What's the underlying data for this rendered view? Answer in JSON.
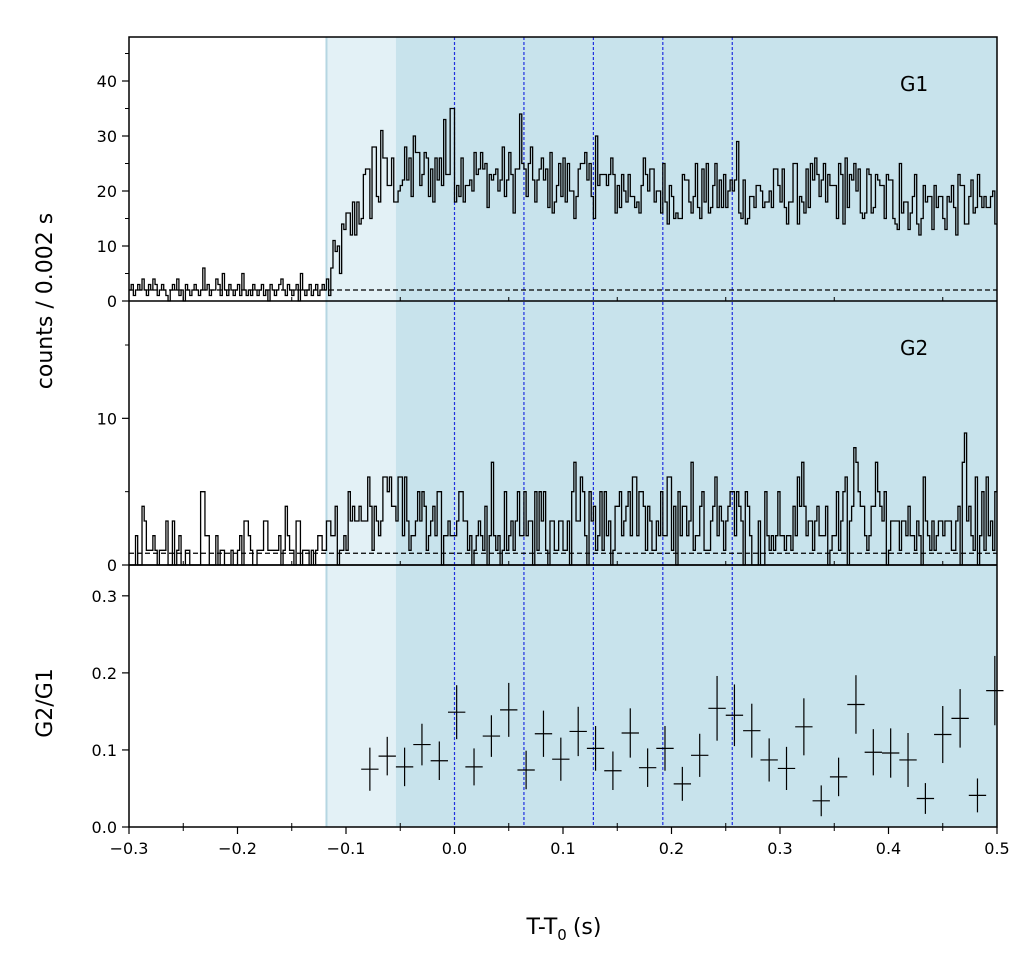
{
  "chart_data": [
    {
      "panel": "G1",
      "type": "histogram-step",
      "label": "G1",
      "ylabel": "counts / 0.002 s",
      "xlim": [
        -0.3,
        0.5
      ],
      "ylim": [
        0,
        48
      ],
      "yticks": [
        0,
        10,
        20,
        30,
        40
      ],
      "bin_width": 0.002,
      "background_level": 2,
      "rise_start": -0.118,
      "rise_end": -0.06,
      "pre_counts": [
        2,
        3,
        1,
        2,
        3,
        2,
        4,
        2,
        1,
        3,
        2,
        4,
        3,
        1,
        2,
        3,
        2,
        1,
        0,
        2,
        3,
        2,
        4,
        1,
        2,
        0,
        3,
        2,
        1,
        2,
        3,
        2,
        1,
        2,
        6,
        2,
        3,
        1,
        2,
        2,
        4,
        3,
        1,
        5,
        2,
        1,
        3,
        2,
        1,
        2,
        3,
        1,
        5,
        2,
        1,
        2,
        1,
        3,
        2,
        1,
        2,
        3,
        1,
        2,
        0,
        3,
        2,
        1,
        2,
        3,
        4,
        2,
        1,
        3,
        2,
        1,
        2,
        3,
        0,
        5,
        2,
        1,
        2,
        3,
        1
      ],
      "post_level": [
        [
          -0.118,
          2
        ],
        [
          -0.1,
          12
        ],
        [
          -0.085,
          19
        ],
        [
          -0.06,
          22
        ],
        [
          0.0,
          24
        ],
        [
          0.05,
          22
        ],
        [
          0.12,
          21
        ],
        [
          0.2,
          20
        ],
        [
          0.28,
          19
        ],
        [
          0.35,
          20
        ],
        [
          0.42,
          18
        ],
        [
          0.5,
          17
        ]
      ],
      "post_noise_amplitude": 6,
      "peaks": [
        [
          -0.075,
          28
        ],
        [
          -0.068,
          31
        ],
        [
          -0.038,
          30
        ],
        [
          -0.01,
          33
        ],
        [
          -0.003,
          35
        ],
        [
          0.06,
          34
        ],
        [
          0.13,
          30
        ],
        [
          0.26,
          29
        ],
        [
          0.36,
          26
        ],
        [
          0.41,
          25
        ]
      ]
    },
    {
      "panel": "G2",
      "type": "histogram-step",
      "label": "G2",
      "xlim": [
        -0.3,
        0.5
      ],
      "ylim": [
        0,
        18
      ],
      "yticks": [
        0,
        10
      ],
      "bin_width": 0.002,
      "background_level": 0.8,
      "pre_level": 0.9,
      "post_level": 2.8,
      "rise_start": -0.118,
      "peaks": [
        [
          -0.26,
          3
        ],
        [
          -0.233,
          5
        ],
        [
          -0.193,
          3
        ],
        [
          -0.175,
          3
        ],
        [
          -0.145,
          3
        ],
        [
          -0.117,
          3
        ],
        [
          -0.05,
          6
        ],
        [
          -0.065,
          6
        ],
        [
          -0.015,
          5
        ],
        [
          0.005,
          5
        ],
        [
          0.165,
          6
        ],
        [
          0.24,
          6
        ],
        [
          0.255,
          5
        ],
        [
          0.37,
          7
        ],
        [
          0.47,
          9
        ],
        [
          0.49,
          6
        ]
      ]
    },
    {
      "panel": "ratio",
      "type": "scatter-errorbar",
      "ylabel": "G2/G1",
      "xlabel": "T-T",
      "xlabel_sub": "0",
      "xlabel_unit": "(s)",
      "xlim": [
        -0.3,
        0.5
      ],
      "ylim": [
        0,
        0.34
      ],
      "yticks": [
        0.0,
        0.1,
        0.2,
        0.3
      ],
      "xticks": [
        -0.3,
        -0.2,
        -0.1,
        0.0,
        0.1,
        0.2,
        0.3,
        0.4,
        0.5
      ],
      "bin_halfwidth": 0.008,
      "points": [
        {
          "x": -0.078,
          "y": 0.075,
          "err": 0.028
        },
        {
          "x": -0.062,
          "y": 0.092,
          "err": 0.025
        },
        {
          "x": -0.046,
          "y": 0.078,
          "err": 0.025
        },
        {
          "x": -0.03,
          "y": 0.107,
          "err": 0.027
        },
        {
          "x": -0.014,
          "y": 0.086,
          "err": 0.025
        },
        {
          "x": 0.002,
          "y": 0.149,
          "err": 0.035
        },
        {
          "x": 0.018,
          "y": 0.078,
          "err": 0.024
        },
        {
          "x": 0.034,
          "y": 0.118,
          "err": 0.027
        },
        {
          "x": 0.05,
          "y": 0.152,
          "err": 0.035
        },
        {
          "x": 0.066,
          "y": 0.074,
          "err": 0.025
        },
        {
          "x": 0.082,
          "y": 0.121,
          "err": 0.03
        },
        {
          "x": 0.098,
          "y": 0.088,
          "err": 0.028
        },
        {
          "x": 0.114,
          "y": 0.124,
          "err": 0.032
        },
        {
          "x": 0.13,
          "y": 0.102,
          "err": 0.029
        },
        {
          "x": 0.146,
          "y": 0.073,
          "err": 0.025
        },
        {
          "x": 0.162,
          "y": 0.122,
          "err": 0.032
        },
        {
          "x": 0.178,
          "y": 0.077,
          "err": 0.025
        },
        {
          "x": 0.194,
          "y": 0.102,
          "err": 0.029
        },
        {
          "x": 0.21,
          "y": 0.056,
          "err": 0.022
        },
        {
          "x": 0.226,
          "y": 0.093,
          "err": 0.028
        },
        {
          "x": 0.242,
          "y": 0.154,
          "err": 0.042
        },
        {
          "x": 0.258,
          "y": 0.145,
          "err": 0.04
        },
        {
          "x": 0.274,
          "y": 0.125,
          "err": 0.035
        },
        {
          "x": 0.29,
          "y": 0.087,
          "err": 0.028
        },
        {
          "x": 0.306,
          "y": 0.076,
          "err": 0.028
        },
        {
          "x": 0.322,
          "y": 0.13,
          "err": 0.037
        },
        {
          "x": 0.338,
          "y": 0.034,
          "err": 0.02
        },
        {
          "x": 0.354,
          "y": 0.065,
          "err": 0.025
        },
        {
          "x": 0.37,
          "y": 0.159,
          "err": 0.038
        },
        {
          "x": 0.386,
          "y": 0.097,
          "err": 0.03
        },
        {
          "x": 0.402,
          "y": 0.096,
          "err": 0.032
        },
        {
          "x": 0.418,
          "y": 0.087,
          "err": 0.035
        },
        {
          "x": 0.434,
          "y": 0.037,
          "err": 0.02
        },
        {
          "x": 0.45,
          "y": 0.12,
          "err": 0.037
        },
        {
          "x": 0.466,
          "y": 0.141,
          "err": 0.038
        },
        {
          "x": 0.482,
          "y": 0.041,
          "err": 0.022
        },
        {
          "x": 0.498,
          "y": 0.177,
          "err": 0.045
        }
      ]
    }
  ],
  "shading": {
    "light_region": [
      -0.118,
      -0.054
    ],
    "dark_region": [
      -0.054,
      0.5
    ],
    "light_color": "#e3f1f6",
    "dark_color": "#c8e3ec",
    "edge_color": "#b5d6e2"
  },
  "vlines": {
    "x": [
      0.0,
      0.064,
      0.128,
      0.192,
      0.256
    ],
    "color": "#1f2fe0"
  },
  "colors": {
    "trace": "#000000",
    "axis": "#000000"
  }
}
